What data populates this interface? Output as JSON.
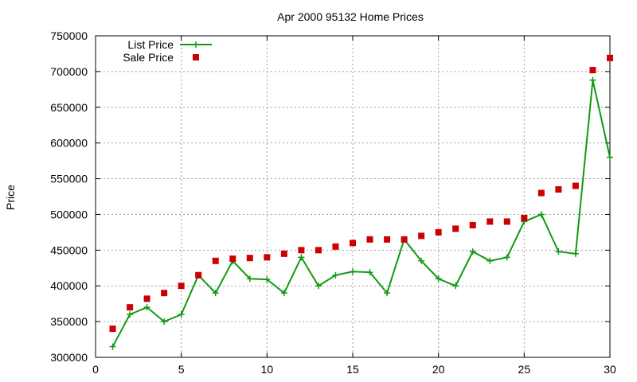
{
  "chart_data": {
    "type": "line",
    "title": "Apr 2000 95132 Home Prices",
    "ylabel": "Price",
    "xlim": [
      0,
      30
    ],
    "ylim": [
      300000,
      750000
    ],
    "xticks": [
      0,
      5,
      10,
      15,
      20,
      25,
      30
    ],
    "yticks": [
      300000,
      350000,
      400000,
      450000,
      500000,
      550000,
      600000,
      650000,
      700000,
      750000
    ],
    "grid": true,
    "legend_position": "top-left",
    "series": [
      {
        "name": "List Price",
        "style": "line-with-plus-markers",
        "color": "#109a10",
        "x": [
          1,
          2,
          3,
          4,
          5,
          6,
          7,
          8,
          9,
          10,
          11,
          12,
          13,
          14,
          15,
          16,
          17,
          18,
          19,
          20,
          21,
          22,
          23,
          24,
          25,
          26,
          27,
          28,
          29,
          30
        ],
        "values": [
          315000,
          360000,
          370000,
          350000,
          360000,
          415000,
          390000,
          435000,
          410000,
          409000,
          390000,
          440000,
          400000,
          415000,
          420000,
          419000,
          390000,
          465000,
          435000,
          410000,
          400000,
          448000,
          435000,
          440000,
          490000,
          500000,
          448000,
          445000,
          688000,
          580000
        ]
      },
      {
        "name": "Sale Price",
        "style": "square-markers",
        "color": "#cc0000",
        "x": [
          1,
          2,
          3,
          4,
          5,
          6,
          7,
          8,
          9,
          10,
          11,
          12,
          13,
          14,
          15,
          16,
          17,
          18,
          19,
          20,
          21,
          22,
          23,
          24,
          25,
          26,
          27,
          28,
          29,
          30
        ],
        "values": [
          340000,
          370000,
          382000,
          390000,
          400000,
          415000,
          435000,
          438000,
          439000,
          440000,
          445000,
          450000,
          450000,
          455000,
          460000,
          465000,
          465000,
          465000,
          470000,
          475000,
          480000,
          485000,
          490000,
          490000,
          495000,
          530000,
          535000,
          540000,
          702000,
          719000
        ]
      }
    ]
  }
}
